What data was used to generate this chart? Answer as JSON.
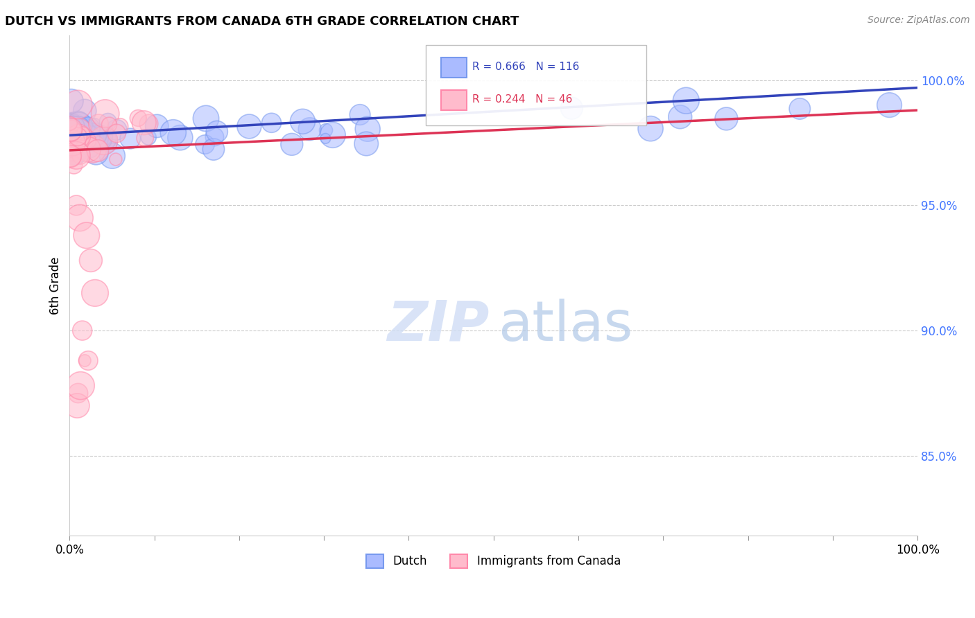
{
  "title": "DUTCH VS IMMIGRANTS FROM CANADA 6TH GRADE CORRELATION CHART",
  "source": "Source: ZipAtlas.com",
  "ylabel": "6th Grade",
  "ytick_values": [
    0.85,
    0.9,
    0.95,
    1.0
  ],
  "ytick_labels": [
    "85.0%",
    "90.0%",
    "95.0%",
    "100.0%"
  ],
  "xmin": 0.0,
  "xmax": 1.0,
  "ymin": 0.818,
  "ymax": 1.018,
  "dutch_R": 0.666,
  "dutch_N": 116,
  "canada_R": 0.244,
  "canada_N": 46,
  "dutch_color": "#7799ee",
  "dutch_face_color": "#aabbff",
  "canada_color": "#ff88aa",
  "canada_face_color": "#ffbbcc",
  "dutch_line_color": "#3344bb",
  "canada_line_color": "#dd3355",
  "legend_label_dutch": "Dutch",
  "legend_label_canada": "Immigrants from Canada",
  "title_fontsize": 13,
  "source_fontsize": 10,
  "ytick_color": "#4477ff",
  "ytick_fontsize": 12,
  "xtick_fontsize": 12,
  "grid_color": "#cccccc",
  "watermark_zip_color": "#d0ddf5",
  "watermark_atlas_color": "#b0c8e8"
}
